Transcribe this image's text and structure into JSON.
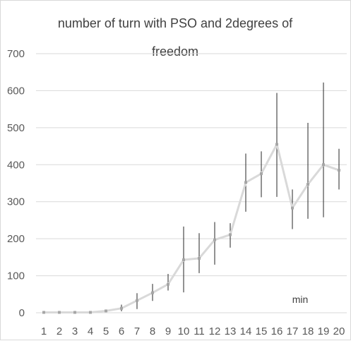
{
  "chart_data": {
    "type": "line",
    "title": "number of turn with PSO and 2degrees of freedom",
    "title_lines": [
      "number of turn with PSO and 2degrees of",
      "freedom"
    ],
    "xlabel": "",
    "ylabel": "",
    "categories": [
      "1",
      "2",
      "3",
      "4",
      "5",
      "6",
      "7",
      "8",
      "9",
      "10",
      "11",
      "12",
      "13",
      "14",
      "15",
      "16",
      "17",
      "18",
      "19",
      "20"
    ],
    "series": [
      {
        "values": [
          1,
          1,
          1,
          1,
          5,
          12,
          33,
          54,
          77,
          143,
          147,
          197,
          211,
          352,
          376,
          455,
          283,
          347,
          400,
          385
        ],
        "error_low": [
          1,
          1,
          1,
          1,
          3,
          4,
          10,
          32,
          60,
          55,
          107,
          130,
          176,
          273,
          312,
          313,
          226,
          254,
          258,
          333
        ],
        "error_high": [
          1,
          1,
          1,
          1,
          8,
          22,
          53,
          78,
          105,
          233,
          215,
          245,
          242,
          430,
          436,
          594,
          333,
          513,
          622,
          443
        ],
        "color": "#d9d9d9",
        "marker_color": "#a6a6a6"
      }
    ],
    "ylim": [
      0,
      700
    ],
    "yticks": [
      0,
      100,
      200,
      300,
      400,
      500,
      600,
      700
    ],
    "grid": true,
    "gridline_color": "#d9d9d9",
    "errorbar_color": "#262626",
    "annotations": [
      {
        "text": "min",
        "x": "17.5",
        "y": 27
      }
    ]
  }
}
